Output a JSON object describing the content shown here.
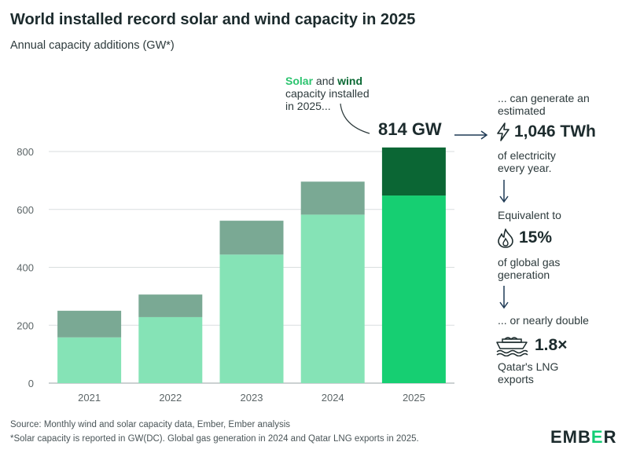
{
  "title": "World installed record solar and wind capacity in 2025",
  "subtitle": "Annual capacity additions (GW*)",
  "chart_data": {
    "type": "bar",
    "stacked": true,
    "categories": [
      "2021",
      "2022",
      "2023",
      "2024",
      "2025"
    ],
    "series": [
      {
        "name": "Solar",
        "values": [
          158,
          228,
          444,
          582,
          648
        ]
      },
      {
        "name": "Wind",
        "values": [
          92,
          78,
          117,
          114,
          166
        ]
      }
    ],
    "ylim": [
      0,
      800
    ],
    "yticks": [
      0,
      200,
      400,
      600,
      800
    ],
    "colors": {
      "solar": "#85e3b6",
      "wind": "#7aa994",
      "solar_highlight": "#16cf72",
      "wind_highlight": "#0b6634"
    },
    "highlight_category": "2025",
    "grid": "horizontal"
  },
  "annotation": {
    "solar": "Solar",
    "and": " and ",
    "wind": "wind",
    "rest_line1": "capacity installed",
    "rest_line2": "in 2025..."
  },
  "total_label": "814 GW",
  "side": {
    "line1": "... can generate an",
    "line2": "estimated",
    "twh_value": "1,046 TWh",
    "elec_line1": "of electricity",
    "elec_line2": "every year.",
    "equiv": "Equivalent to",
    "gas_value": "15%",
    "gas_line1": "of global gas",
    "gas_line2": "generation",
    "double": "... or nearly double",
    "lng_value": "1.8×",
    "lng_line1": "Qatar's LNG",
    "lng_line2": "exports"
  },
  "source": "Source: Monthly wind and solar capacity data, Ember, Ember analysis",
  "footnote": "*Solar capacity is reported in GW(DC). Global gas generation in 2024 and Qatar LNG exports in 2025.",
  "logo": {
    "part1": "EMB",
    "part2": "E",
    "part3": "R"
  }
}
